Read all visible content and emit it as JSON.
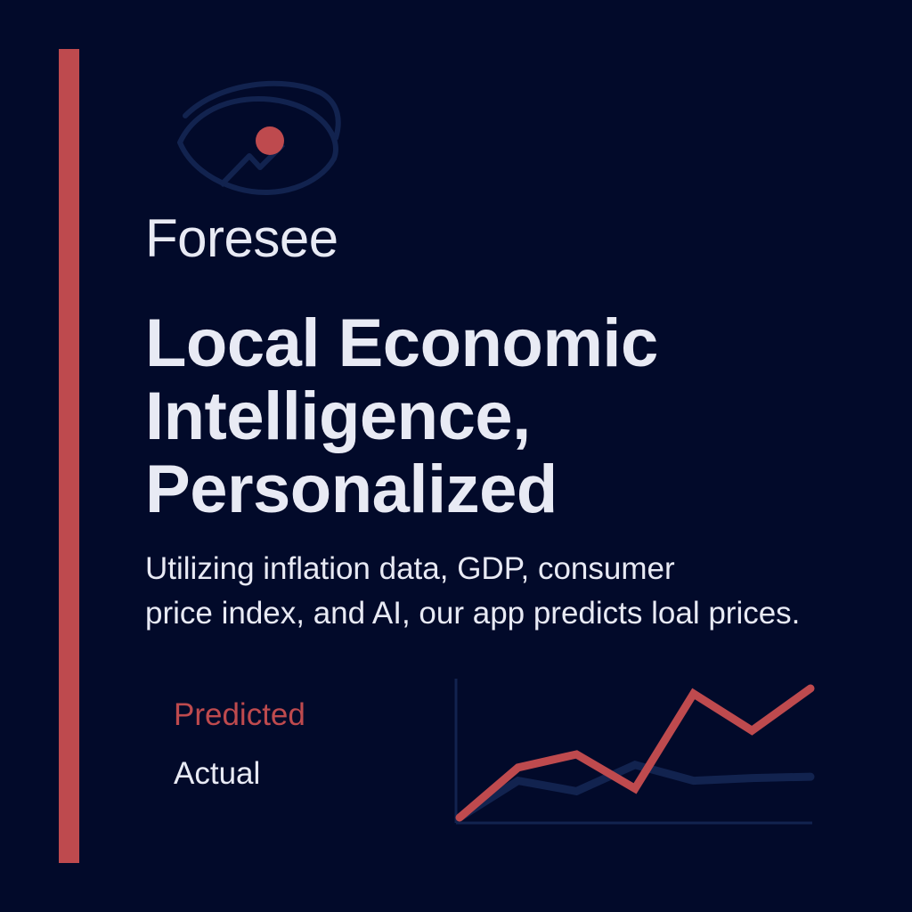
{
  "colors": {
    "background": "#020a2a",
    "accent": "#be4a4e",
    "navy": "#12234f",
    "text": "#e8eaf4"
  },
  "logo": {
    "icon": "eye-chart-icon"
  },
  "brand": {
    "name": "Foresee"
  },
  "headline": {
    "lines": [
      "Local Economic",
      "Intelligence,",
      "Personalized"
    ]
  },
  "description": {
    "lines": [
      "Utilizing inflation data, GDP, consumer",
      "price index, and AI, our app predicts loal prices."
    ]
  },
  "legend": {
    "predicted": "Predicted",
    "actual": "Actual"
  },
  "chart_data": {
    "type": "line",
    "x": [
      0,
      1,
      2,
      3,
      4,
      5,
      6
    ],
    "ylim": [
      0,
      100
    ],
    "grid": false,
    "axes_labels_shown": false,
    "series": [
      {
        "name": "Predicted",
        "color": "#be4a4e",
        "values": [
          0,
          38,
          48,
          22,
          94,
          66,
          98
        ]
      },
      {
        "name": "Actual",
        "color": "#12234f",
        "values": [
          0,
          28,
          20,
          40,
          28,
          30,
          31
        ]
      }
    ]
  }
}
